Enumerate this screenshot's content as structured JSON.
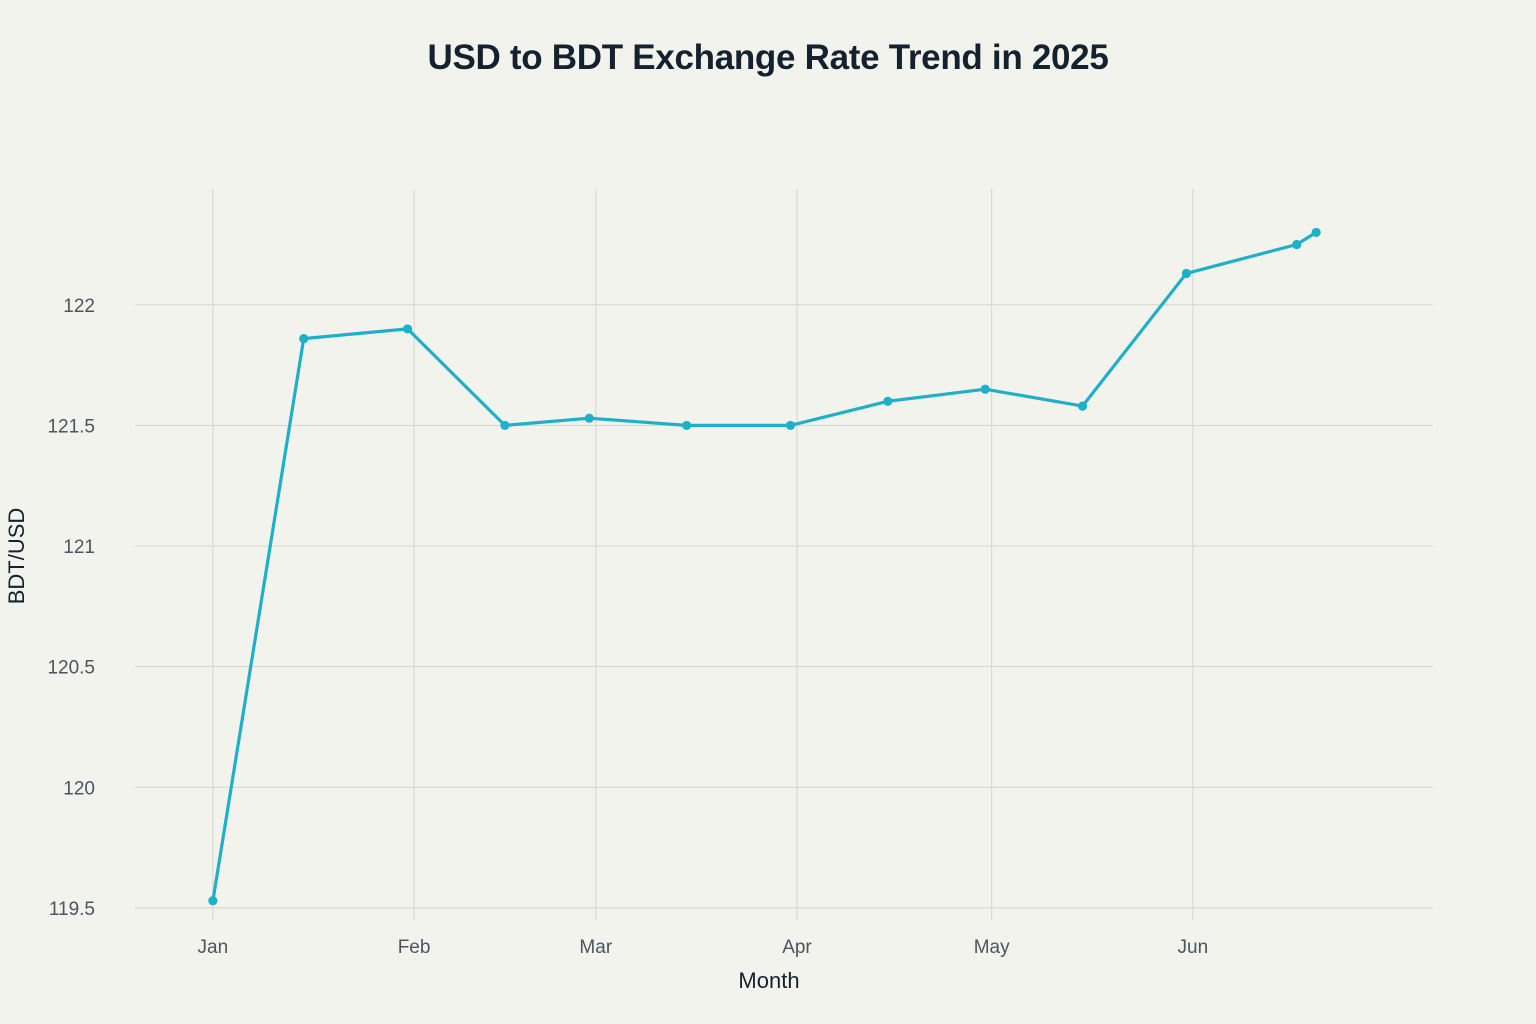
{
  "chart_data": {
    "type": "line",
    "title": "USD to BDT Exchange Rate Trend in 2025",
    "xlabel": "Month",
    "ylabel": "BDT/USD",
    "x_tick_labels": [
      "Jan",
      "Feb",
      "Mar",
      "Apr",
      "May",
      "Jun"
    ],
    "x_tick_dates": [
      "2025-01-01",
      "2025-02-01",
      "2025-03-01",
      "2025-04-01",
      "2025-05-01",
      "2025-06-01"
    ],
    "xlim": [
      "2024-12-20",
      "2025-07-08"
    ],
    "y_ticks": [
      119.5,
      120,
      120.5,
      121,
      121.5,
      122
    ],
    "y_tick_labels": [
      "119.5",
      "120",
      "120.5",
      "121",
      "121.5",
      "122"
    ],
    "ylim": [
      119.45,
      122.48
    ],
    "grid": true,
    "legend": "none",
    "series": [
      {
        "color": "#1eb0c6",
        "x": [
          "2025-01-01",
          "2025-01-15",
          "2025-01-31",
          "2025-02-15",
          "2025-02-28",
          "2025-03-15",
          "2025-03-31",
          "2025-04-15",
          "2025-04-30",
          "2025-05-15",
          "2025-05-31",
          "2025-06-17",
          "2025-06-20"
        ],
        "y": [
          119.53,
          121.86,
          121.9,
          121.5,
          121.53,
          121.5,
          121.5,
          121.6,
          121.65,
          121.58,
          122.13,
          122.25,
          122.3
        ]
      }
    ]
  }
}
